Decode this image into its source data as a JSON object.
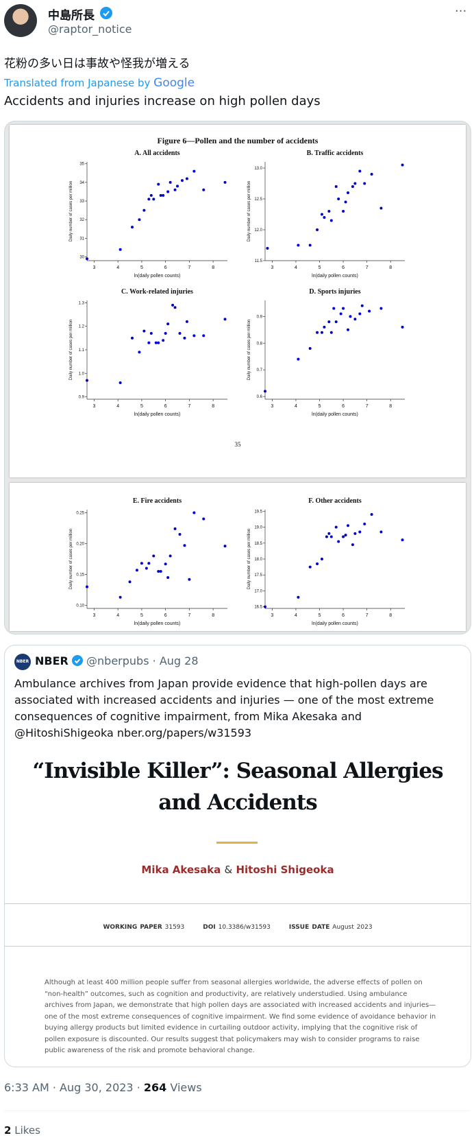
{
  "tweet": {
    "author": "中島所長",
    "handle": "@raptor_notice",
    "text": "花粉の多い日は事故や怪我が増える",
    "translated_from": "Translated from Japanese by",
    "translator": "Google",
    "translation": "Accidents and injuries increase on high pollen days",
    "time": "6:33 AM · Aug 30, 2023 · ",
    "views_count": "264",
    "views_label": " Views",
    "likes_count": "2",
    "likes_label": "Likes"
  },
  "figure": {
    "title": "Figure 6—Pollen and the number of accidents",
    "page_number": "35"
  },
  "chart_data": [
    {
      "type": "scatter",
      "title": "A.  All accidents",
      "xlabel": "ln(daily pollen counts)",
      "ylabel": "Daily number of cases per million",
      "color": "#0000cc",
      "xlim": [
        2.7,
        8.6
      ],
      "xticks": [
        3,
        4,
        5,
        6,
        7,
        8
      ],
      "ylim": [
        29.8,
        35.1
      ],
      "yticks": [
        30,
        31,
        32,
        33,
        34,
        35
      ],
      "x": [
        2.7,
        4.1,
        4.6,
        4.9,
        5.1,
        5.3,
        5.4,
        5.5,
        5.7,
        5.8,
        5.9,
        6.1,
        6.2,
        6.4,
        6.5,
        6.7,
        6.9,
        7.2,
        7.6,
        8.5
      ],
      "y": [
        29.9,
        30.4,
        31.6,
        32.0,
        32.5,
        33.1,
        33.3,
        33.1,
        33.9,
        33.3,
        33.3,
        33.5,
        34.0,
        33.6,
        33.8,
        34.1,
        34.2,
        34.6,
        33.6,
        34.0
      ]
    },
    {
      "type": "scatter",
      "title": "B.  Traffic accidents",
      "xlabel": "ln(daily pollen counts)",
      "ylabel": "Daily number of cases per million",
      "color": "#0000cc",
      "xlim": [
        2.7,
        8.6
      ],
      "xticks": [
        3,
        4,
        5,
        6,
        7,
        8
      ],
      "ylim": [
        11.5,
        13.1
      ],
      "yticks": [
        {
          "value": 11.5,
          "label": "11.5"
        },
        {
          "value": 12,
          "label": "12.0"
        },
        {
          "value": 12.5,
          "label": "12.5"
        },
        {
          "value": 13,
          "label": "13.0"
        }
      ],
      "x": [
        2.8,
        4.1,
        4.6,
        4.9,
        5.1,
        5.2,
        5.4,
        5.5,
        5.7,
        5.8,
        6.0,
        6.1,
        6.2,
        6.4,
        6.5,
        6.7,
        6.9,
        7.2,
        7.6,
        8.5
      ],
      "y": [
        11.7,
        11.75,
        11.75,
        12.0,
        12.25,
        12.2,
        12.3,
        12.15,
        12.7,
        12.5,
        12.3,
        12.45,
        12.6,
        12.7,
        12.75,
        12.95,
        12.75,
        12.9,
        12.35,
        13.05
      ]
    },
    {
      "type": "scatter",
      "title": "C.  Work-related injuries",
      "xlabel": "ln(daily pollen counts)",
      "ylabel": "Daily number of cases per million",
      "color": "#0000cc",
      "xlim": [
        2.7,
        8.6
      ],
      "xticks": [
        3,
        4,
        5,
        6,
        7,
        8
      ],
      "ylim": [
        0.89,
        1.31
      ],
      "yticks": [
        0.9,
        {
          "value": 1,
          "label": "1.0"
        },
        1.1,
        1.2,
        1.3
      ],
      "x": [
        2.7,
        4.1,
        4.6,
        4.9,
        5.1,
        5.3,
        5.4,
        5.6,
        5.7,
        5.9,
        6.0,
        6.1,
        6.3,
        6.4,
        6.6,
        6.8,
        6.9,
        7.2,
        7.6,
        8.5
      ],
      "y": [
        0.97,
        0.96,
        1.15,
        1.09,
        1.18,
        1.13,
        1.17,
        1.13,
        1.13,
        1.14,
        1.17,
        1.21,
        1.29,
        1.28,
        1.17,
        1.15,
        1.22,
        1.16,
        1.16,
        1.23
      ]
    },
    {
      "type": "scatter",
      "title": "D.  Sports injuries",
      "xlabel": "ln(daily pollen counts)",
      "ylabel": "Daily number of cases per million",
      "color": "#0000cc",
      "xlim": [
        2.7,
        8.6
      ],
      "xticks": [
        3,
        4,
        5,
        6,
        7,
        8
      ],
      "ylim": [
        0.59,
        0.96
      ],
      "yticks": [
        0.6,
        0.7,
        0.8,
        0.9
      ],
      "x": [
        2.7,
        4.1,
        4.6,
        4.9,
        5.1,
        5.2,
        5.4,
        5.5,
        5.6,
        5.7,
        5.9,
        6.0,
        6.2,
        6.3,
        6.5,
        6.7,
        6.8,
        7.1,
        7.6,
        8.5
      ],
      "y": [
        0.62,
        0.74,
        0.78,
        0.84,
        0.84,
        0.86,
        0.88,
        0.84,
        0.93,
        0.88,
        0.91,
        0.93,
        0.85,
        0.9,
        0.89,
        0.91,
        0.94,
        0.92,
        0.93,
        0.86
      ]
    },
    {
      "type": "scatter",
      "title": "E.  Fire accidents",
      "xlabel": "ln(daily pollen counts)",
      "ylabel": "Daily number of cases per million",
      "color": "#0000cc",
      "xlim": [
        2.7,
        8.6
      ],
      "xticks": [
        3,
        4,
        5,
        6,
        7,
        8
      ],
      "ylim": [
        0.095,
        0.255
      ],
      "yticks": [
        {
          "value": 0.1,
          "label": "0.10"
        },
        {
          "value": 0.15,
          "label": "0.15"
        },
        {
          "value": 0.2,
          "label": "0.20"
        },
        {
          "value": 0.25,
          "label": "0.25"
        }
      ],
      "x": [
        2.7,
        4.1,
        4.5,
        4.8,
        5.0,
        5.2,
        5.3,
        5.5,
        5.7,
        5.8,
        6.0,
        6.1,
        6.2,
        6.4,
        6.6,
        6.8,
        7.0,
        7.2,
        7.6,
        8.5
      ],
      "y": [
        0.13,
        0.113,
        0.138,
        0.157,
        0.168,
        0.16,
        0.168,
        0.18,
        0.155,
        0.155,
        0.167,
        0.145,
        0.18,
        0.224,
        0.215,
        0.197,
        0.142,
        0.25,
        0.24,
        0.196
      ]
    },
    {
      "type": "scatter",
      "title": "F.  Other accidents",
      "xlabel": "ln(daily pollen counts)",
      "ylabel": "Daily number of cases per million",
      "color": "#0000cc",
      "xlim": [
        2.7,
        8.6
      ],
      "xticks": [
        3,
        4,
        5,
        6,
        7,
        8
      ],
      "ylim": [
        16.45,
        19.55
      ],
      "yticks": [
        16.5,
        {
          "value": 17,
          "label": "17.0"
        },
        17.5,
        {
          "value": 18,
          "label": "18.0"
        },
        18.5,
        {
          "value": 19,
          "label": "19.0"
        },
        19.5
      ],
      "x": [
        2.7,
        4.1,
        4.6,
        4.9,
        5.1,
        5.3,
        5.4,
        5.5,
        5.7,
        5.8,
        6.0,
        6.1,
        6.2,
        6.4,
        6.5,
        6.7,
        6.9,
        7.2,
        7.6,
        8.5
      ],
      "y": [
        16.5,
        16.8,
        17.75,
        17.85,
        18.0,
        18.7,
        18.8,
        18.7,
        19.0,
        18.55,
        18.7,
        18.75,
        19.05,
        18.45,
        18.8,
        18.85,
        19.1,
        19.4,
        18.85,
        18.6
      ]
    }
  ],
  "quote": {
    "logo": "NBER",
    "name": "NBER",
    "handle": "@nberpubs",
    "separator": "·",
    "date": "Aug 28",
    "text": "Ambulance archives from Japan provide evidence that high-pollen days are associated with increased accidents and injuries — one of the most extreme consequences of cognitive impairment, from Mika Akesaka and @HitoshiShigeoka nber.org/papers/w31593",
    "paper": {
      "title": "“Invisible Killer”: Seasonal Allergies and Accidents",
      "author1": "Mika Akesaka",
      "amp": "&",
      "author2": "Hitoshi Shigeoka",
      "wp_label": "WORKING PAPER",
      "wp_value": "31593",
      "doi_label": "DOI",
      "doi_value": "10.3386/w31593",
      "date_label": "ISSUE DATE",
      "date_value": "August 2023",
      "abstract": "Although at least 400 million people suffer from seasonal allergies worldwide, the adverse effects of pollen on “non-health” outcomes, such as cognition and productivity, are relatively understudied. Using ambulance archives from Japan, we demonstrate that high pollen days are associated with increased accidents and injuries—one of the most extreme consequences of cognitive impairment. We find some evidence of avoidance behavior in buying allergy products but limited evidence in curtailing outdoor activity, implying that the cognitive risk of pollen exposure is discounted. Our results suggest that policymakers may wish to consider programs to raise public awareness of the risk and promote behavioral change."
    }
  }
}
